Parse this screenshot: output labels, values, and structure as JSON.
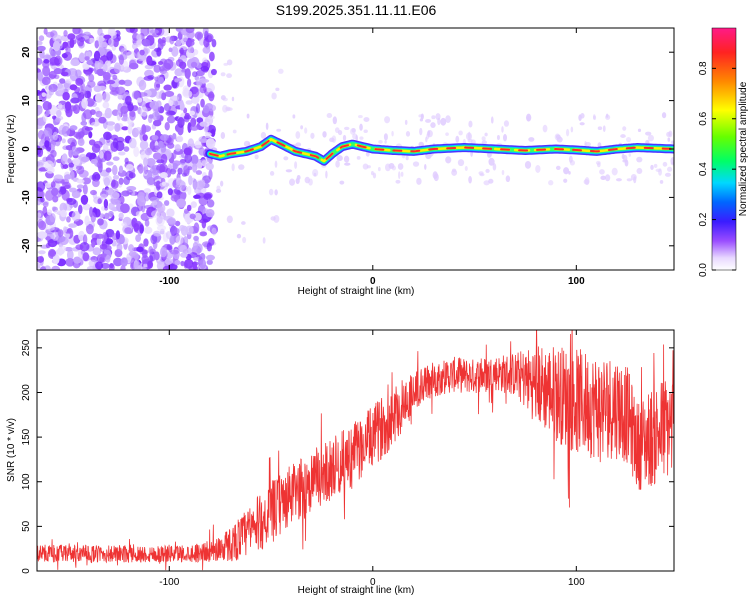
{
  "figure": {
    "title": "S199.2025.351.11.11.E06"
  },
  "chart_data": [
    {
      "type": "heatmap",
      "name": "spectrogram",
      "xlabel": "Height of straight line (km)",
      "ylabel": "Frequency (Hz)",
      "xlim": [
        -165,
        148
      ],
      "ylim": [
        -25,
        25
      ],
      "xticks": [
        -100,
        0,
        100
      ],
      "yticks": [
        -20,
        -10,
        0,
        10,
        20
      ],
      "colorbar": {
        "label": "Normalized spectral amplitude",
        "ticks": [
          0.0,
          0.2,
          0.4,
          0.6,
          0.8
        ],
        "range": [
          0,
          0.96
        ]
      },
      "trace": {
        "description_points_x": [
          -80,
          -75,
          -70,
          -62,
          -55,
          -50,
          -45,
          -38,
          -33,
          -28,
          -24,
          -20,
          -15,
          -10,
          -5,
          0,
          10,
          20,
          30,
          45,
          60,
          75,
          90,
          100,
          110,
          120,
          130,
          148
        ],
        "description_points_y": [
          -1.0,
          -1.5,
          -1.0,
          -0.5,
          0.5,
          2.0,
          1.0,
          -0.5,
          -1.0,
          -1.5,
          -2.5,
          -1.0,
          0.5,
          1.0,
          0.5,
          0.0,
          -0.3,
          -0.5,
          0.0,
          0.3,
          0.0,
          -0.3,
          0.0,
          -0.2,
          -0.5,
          0.0,
          0.3,
          0.0
        ]
      }
    },
    {
      "type": "line",
      "name": "snr",
      "xlabel": "Height of straight line (km)",
      "ylabel": "SNR (10 * v/v)",
      "xlim": [
        -165,
        148
      ],
      "ylim": [
        0,
        270
      ],
      "xticks": [
        -100,
        0,
        100
      ],
      "yticks": [
        0,
        50,
        100,
        150,
        200,
        250
      ],
      "color": "#ee3333",
      "envelope_x": [
        -165,
        -140,
        -110,
        -90,
        -80,
        -70,
        -60,
        -50,
        -40,
        -30,
        -20,
        -10,
        0,
        10,
        20,
        30,
        40,
        50,
        60,
        70,
        80,
        90,
        100,
        110,
        120,
        125,
        130,
        140,
        148
      ],
      "envelope_y": [
        20,
        19,
        19,
        20,
        22,
        30,
        45,
        65,
        85,
        100,
        115,
        130,
        150,
        175,
        200,
        215,
        220,
        218,
        222,
        220,
        210,
        200,
        190,
        185,
        185,
        175,
        140,
        155,
        165
      ],
      "noise_amplitude": [
        10,
        10,
        10,
        10,
        12,
        20,
        30,
        35,
        35,
        35,
        35,
        35,
        35,
        35,
        25,
        20,
        20,
        20,
        20,
        25,
        45,
        55,
        60,
        60,
        60,
        55,
        50,
        60,
        60
      ]
    }
  ]
}
